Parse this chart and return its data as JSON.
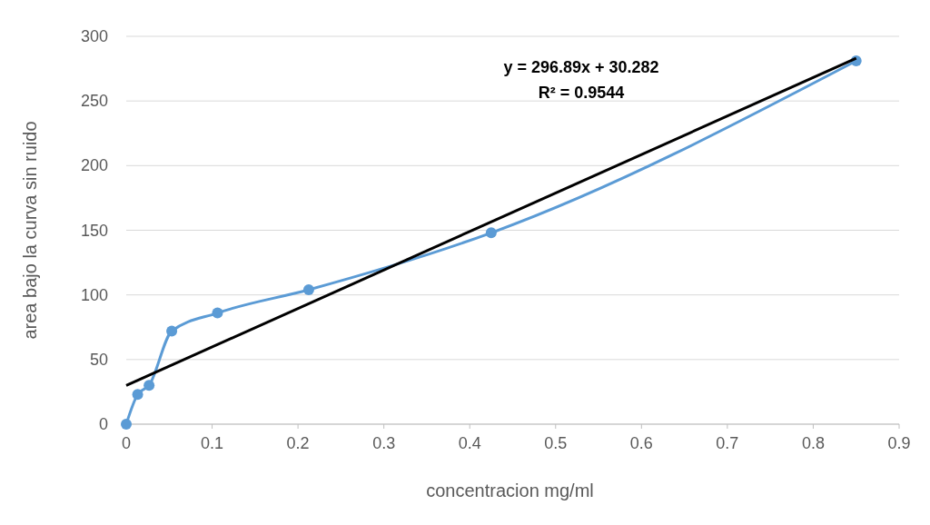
{
  "chart_data": {
    "type": "line",
    "xlabel": "concentracion mg/ml",
    "ylabel": "area bajo la curva sin ruido",
    "xlim": [
      0,
      0.9
    ],
    "xticks": [
      0,
      0.1,
      0.2,
      0.3,
      0.4,
      0.5,
      0.6,
      0.7,
      0.8,
      0.9
    ],
    "ylim": [
      0,
      300
    ],
    "yticks": [
      0,
      50,
      100,
      150,
      200,
      250,
      300
    ],
    "grid": "y",
    "series": [
      {
        "color": "#5b9bd5",
        "marker": "circle",
        "x": [
          0,
          0.0133,
          0.0266,
          0.053,
          0.10625,
          0.2125,
          0.425,
          0.85
        ],
        "values": [
          0,
          23,
          30,
          72,
          86,
          104,
          148,
          281
        ]
      },
      {
        "color": "#000000",
        "marker": "none",
        "x": [
          0,
          0.85
        ],
        "values": [
          30,
          283
        ]
      }
    ],
    "annotations": [
      "y = 296.89x + 30.282",
      "R² = 0.9544"
    ]
  }
}
